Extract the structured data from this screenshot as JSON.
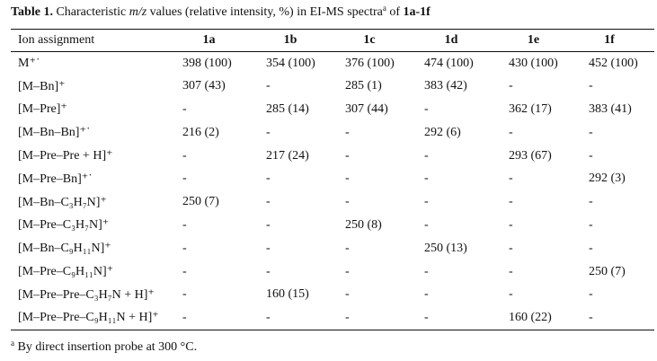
{
  "caption": {
    "label": "Table 1.",
    "text_before": " Characteristic ",
    "mz": "m/z",
    "text_middle": " values (relative intensity, %) in EI-MS spectra",
    "note_mark": "a",
    "text_after": " of ",
    "compounds": "1a-1f"
  },
  "table": {
    "headers": [
      "Ion assignment",
      "1a",
      "1b",
      "1c",
      "1d",
      "1e",
      "1f"
    ],
    "rows": [
      [
        "M⁺˙",
        "398 (100)",
        "354 (100)",
        "376 (100)",
        "474 (100)",
        "430 (100)",
        "452 (100)"
      ],
      [
        "[M–Bn]⁺",
        "307 (43)",
        "-",
        "285 (1)",
        "383 (42)",
        "-",
        "-"
      ],
      [
        "[M–Pre]⁺",
        "-",
        "285 (14)",
        "307 (44)",
        "-",
        "362 (17)",
        "383 (41)"
      ],
      [
        "[M–Bn–Bn]⁺˙",
        "216 (2)",
        "-",
        "-",
        "292 (6)",
        "-",
        "-"
      ],
      [
        "[M–Pre–Pre + H]⁺",
        "-",
        "217 (24)",
        "-",
        "-",
        "293 (67)",
        "-"
      ],
      [
        "[M–Pre–Bn]⁺˙",
        "-",
        "-",
        "-",
        "-",
        "-",
        "292 (3)"
      ],
      [
        "[M–Bn–C₃H₇N]⁺",
        "250 (7)",
        "-",
        "-",
        "-",
        "-",
        "-"
      ],
      [
        "[M–Pre–C₃H₇N]⁺",
        "-",
        "-",
        "250 (8)",
        "-",
        "-",
        "-"
      ],
      [
        "[M–Bn–C₉H₁₁N]⁺",
        "-",
        "-",
        "-",
        "250 (13)",
        "-",
        "-"
      ],
      [
        "[M–Pre–C₉H₁₁N]⁺",
        "-",
        "-",
        "-",
        "-",
        "-",
        "250 (7)"
      ],
      [
        "[M–Pre–Pre–C₃H₇N + H]⁺",
        "-",
        "160 (15)",
        "-",
        "-",
        "-",
        "-"
      ],
      [
        "[M–Pre–Pre–C₉H₁₁N + H]⁺",
        "-",
        "-",
        "-",
        "-",
        "160 (22)",
        "-"
      ]
    ]
  },
  "footnote": {
    "mark": "a",
    "text": " By direct insertion probe at 300 °C."
  }
}
